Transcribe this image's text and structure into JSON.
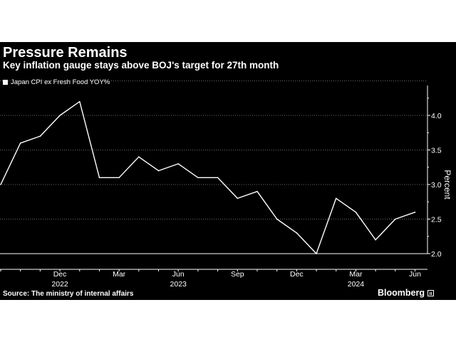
{
  "chart_data": {
    "type": "line",
    "title": "Pressure Remains",
    "subtitle": "Key inflation gauge stays above BOJ's target for 27th month",
    "ylabel": "Percent",
    "ylim": [
      2.0,
      4.5
    ],
    "y_ticks": [
      "2.0",
      "2.5",
      "3.0",
      "3.5",
      "4.0"
    ],
    "y_tick_values": [
      2.0,
      2.5,
      3.0,
      3.5,
      4.0
    ],
    "y_side": "right",
    "grid": "horizontal-dotted",
    "legend_position": "top-left",
    "x_ticks": [
      {
        "label": "Dec",
        "date": "2022-12"
      },
      {
        "label": "Mar",
        "date": "2023-03"
      },
      {
        "label": "Jun",
        "date": "2023-06"
      },
      {
        "label": "Sep",
        "date": "2023-09"
      },
      {
        "label": "Dec",
        "date": "2023-12"
      },
      {
        "label": "Mar",
        "date": "2024-03"
      },
      {
        "label": "Jun",
        "date": "2024-06"
      }
    ],
    "x_years": [
      {
        "label": "2022",
        "date": "2022-12"
      },
      {
        "label": "2023",
        "date": "2023-06"
      },
      {
        "label": "2024",
        "date": "2024-03"
      }
    ],
    "x_start": "2022-09",
    "x_end": "2024-06",
    "target_line_value": 2.0,
    "series": [
      {
        "name": "Japan CPI ex Fresh Food YOY%",
        "color": "#ffffff",
        "x": [
          "2022-09",
          "2022-10",
          "2022-11",
          "2022-12",
          "2023-01",
          "2023-02",
          "2023-03",
          "2023-04",
          "2023-05",
          "2023-06",
          "2023-07",
          "2023-08",
          "2023-09",
          "2023-10",
          "2023-11",
          "2023-12",
          "2024-01",
          "2024-02",
          "2024-03",
          "2024-04",
          "2024-05",
          "2024-06"
        ],
        "values": [
          3.0,
          3.6,
          3.7,
          4.0,
          4.2,
          3.1,
          3.1,
          3.4,
          3.2,
          3.3,
          3.1,
          3.1,
          2.8,
          2.9,
          2.5,
          2.3,
          2.0,
          2.8,
          2.6,
          2.2,
          2.5,
          2.6
        ]
      }
    ]
  },
  "footer": {
    "source": "Source: The ministry of internal affairs",
    "brand": "Bloomberg"
  },
  "colors": {
    "background": "#000000",
    "text": "#ffffff",
    "grid": "#6e6e6e"
  }
}
